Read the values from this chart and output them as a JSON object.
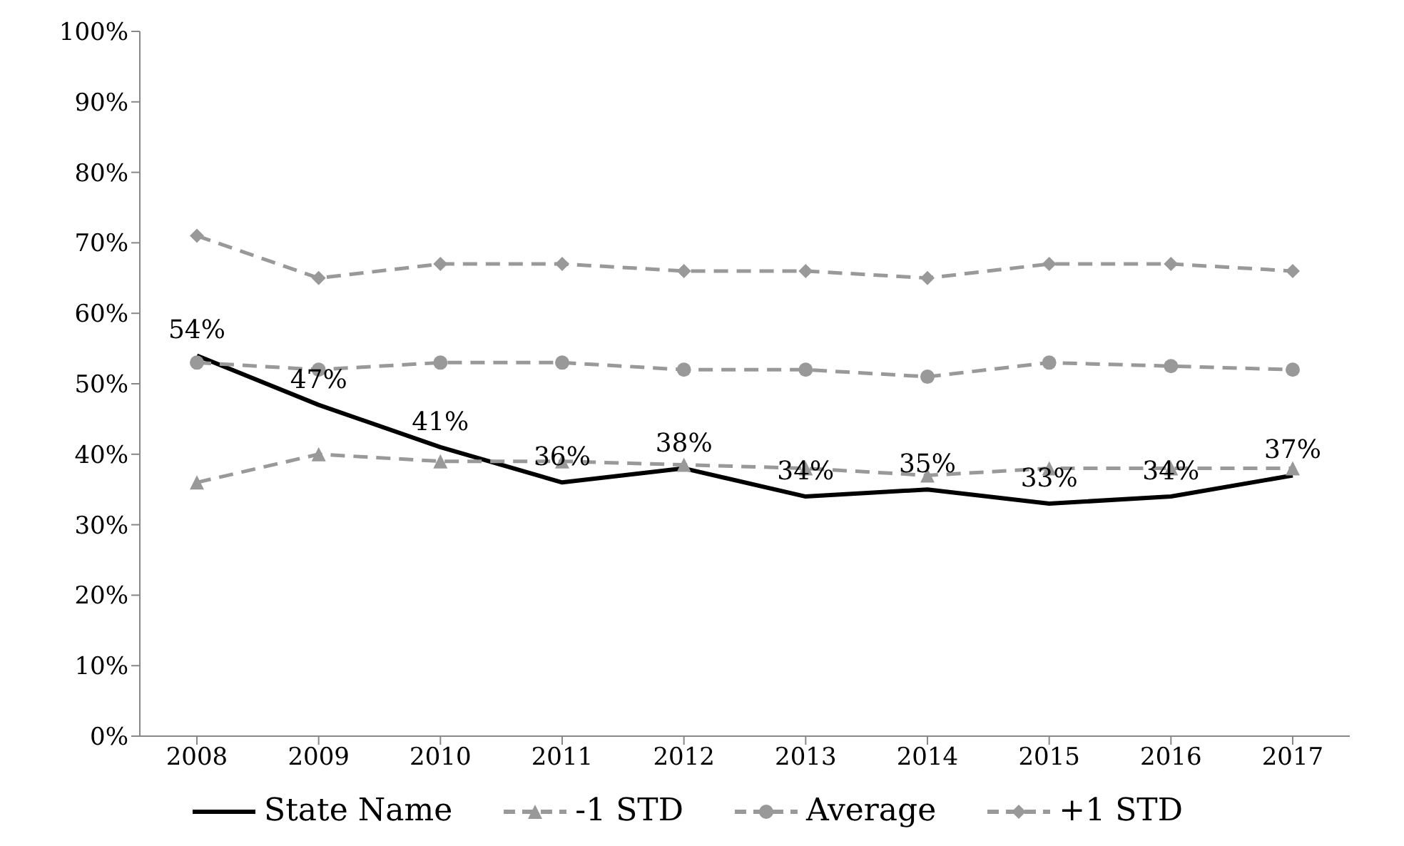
{
  "chart_data": {
    "type": "line",
    "categories": [
      "2008",
      "2009",
      "2010",
      "2011",
      "2012",
      "2013",
      "2014",
      "2015",
      "2016",
      "2017"
    ],
    "series": [
      {
        "name": "State Name",
        "color": "#000000",
        "marker": "none",
        "line_style": "solid",
        "values": [
          54,
          47,
          41,
          36,
          38,
          34,
          35,
          33,
          34,
          37
        ],
        "value_labels": [
          "54%",
          "47%",
          "41%",
          "36%",
          "38%",
          "34%",
          "35%",
          "33%",
          "34%",
          "37%"
        ]
      },
      {
        "name": "-1 STD",
        "color": "#999999",
        "marker": "triangle",
        "line_style": "dashed",
        "values": [
          36,
          40,
          39,
          39,
          38.5,
          38,
          37,
          38,
          38,
          38
        ]
      },
      {
        "name": "Average",
        "color": "#999999",
        "marker": "circle",
        "line_style": "dashed",
        "values": [
          53,
          52,
          53,
          53,
          52,
          52,
          51,
          53,
          52.5,
          52
        ]
      },
      {
        "name": "+1 STD",
        "color": "#999999",
        "marker": "diamond",
        "line_style": "dashed",
        "values": [
          71,
          65,
          67,
          67,
          66,
          66,
          65,
          67,
          67,
          66
        ]
      }
    ],
    "ylim": [
      0,
      100
    ],
    "yticks": [
      {
        "value": 0,
        "label": "0%"
      },
      {
        "value": 10,
        "label": "10%"
      },
      {
        "value": 20,
        "label": "20%"
      },
      {
        "value": 30,
        "label": "30%"
      },
      {
        "value": 40,
        "label": "40%"
      },
      {
        "value": 50,
        "label": "50%"
      },
      {
        "value": 60,
        "label": "60%"
      },
      {
        "value": 70,
        "label": "70%"
      },
      {
        "value": 80,
        "label": "80%"
      },
      {
        "value": 90,
        "label": "90%"
      },
      {
        "value": 100,
        "label": "100%"
      }
    ],
    "grid": false,
    "legend": "bottom"
  }
}
